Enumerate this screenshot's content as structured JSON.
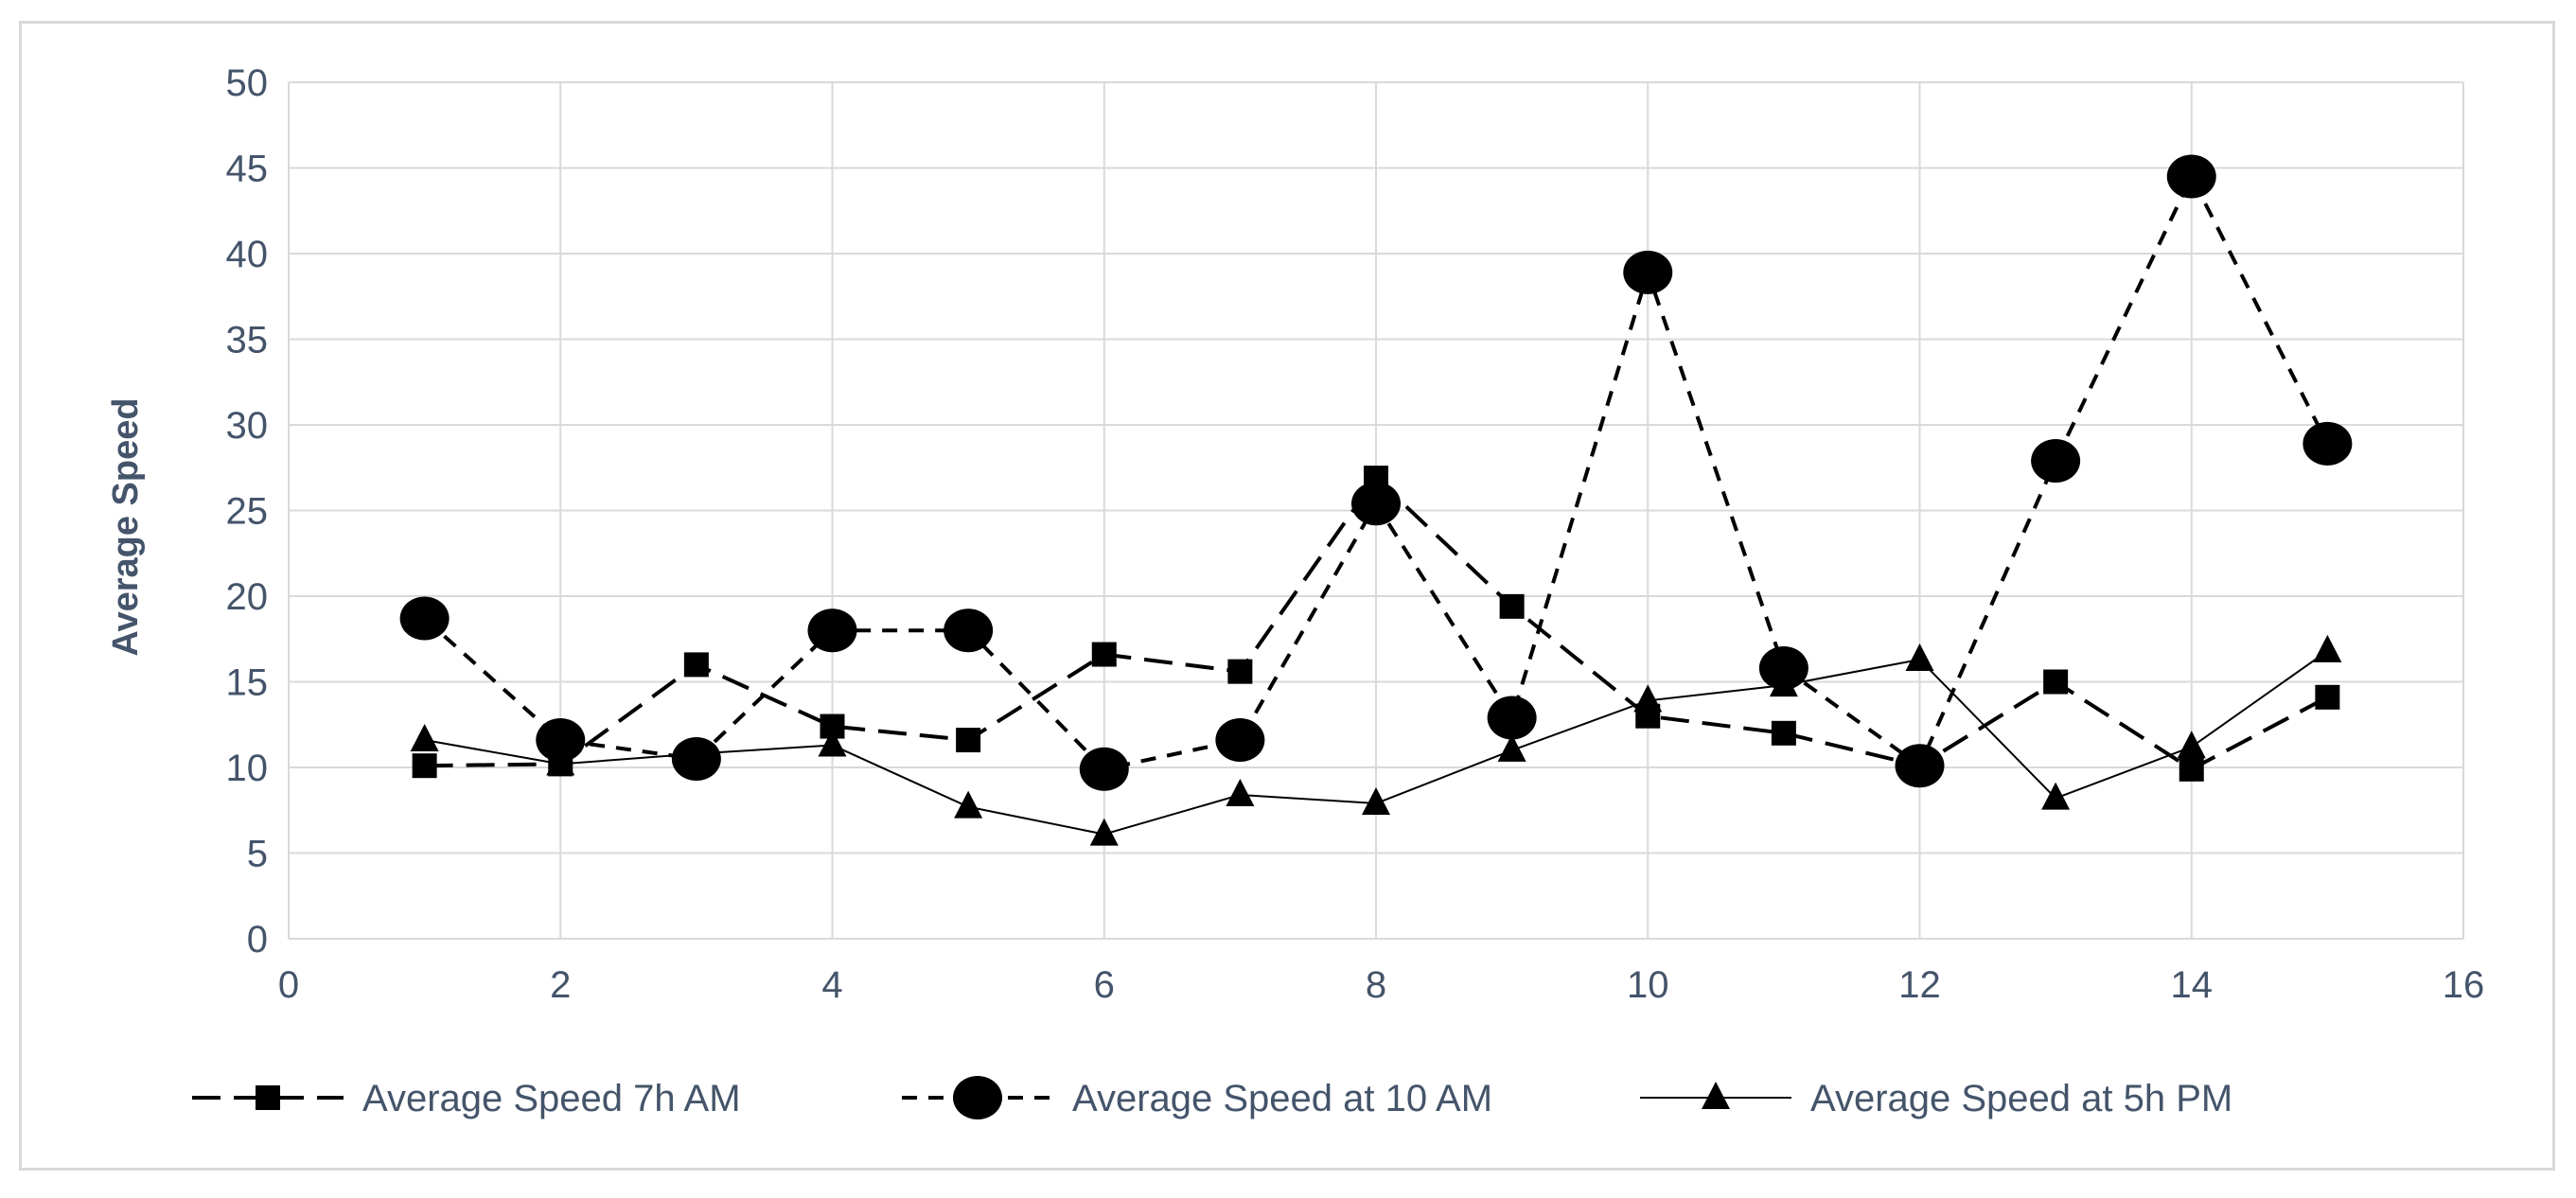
{
  "chart_data": {
    "type": "line",
    "title": "",
    "xlabel": "",
    "ylabel": "Average Speed",
    "xlim": [
      0,
      16
    ],
    "ylim": [
      0,
      50
    ],
    "x_ticks": [
      "0",
      "2",
      "4",
      "6",
      "8",
      "10",
      "12",
      "14",
      "16"
    ],
    "y_ticks": [
      "0",
      "5",
      "10",
      "15",
      "20",
      "25",
      "30",
      "35",
      "40",
      "45",
      "50"
    ],
    "grid": "on",
    "legend_position": "bottom",
    "x": [
      1,
      2,
      3,
      4,
      5,
      6,
      7,
      8,
      9,
      10,
      11,
      12,
      13,
      14,
      15
    ],
    "series": [
      {
        "name": "Average Speed 7h AM",
        "marker": "square",
        "line_style": "long-dash",
        "color": "#000000",
        "values": [
          10.1,
          10.2,
          16.0,
          12.4,
          11.6,
          16.6,
          15.6,
          26.9,
          19.4,
          13.0,
          12.0,
          10.1,
          15.0,
          9.9,
          14.1
        ]
      },
      {
        "name": "Average Speed at 10 AM",
        "marker": "circle",
        "line_style": "short-dash",
        "color": "#000000",
        "values": [
          18.7,
          11.6,
          10.5,
          18.0,
          18.0,
          9.9,
          11.6,
          25.4,
          12.9,
          38.9,
          15.8,
          10.1,
          27.9,
          44.5,
          28.9
        ]
      },
      {
        "name": "Average Speed at 5h PM",
        "marker": "triangle",
        "line_style": "solid",
        "color": "#000000",
        "values": [
          11.6,
          10.2,
          10.8,
          11.3,
          7.7,
          6.1,
          8.4,
          7.9,
          11.0,
          13.9,
          14.8,
          16.3,
          8.2,
          11.2,
          16.8
        ]
      }
    ]
  }
}
